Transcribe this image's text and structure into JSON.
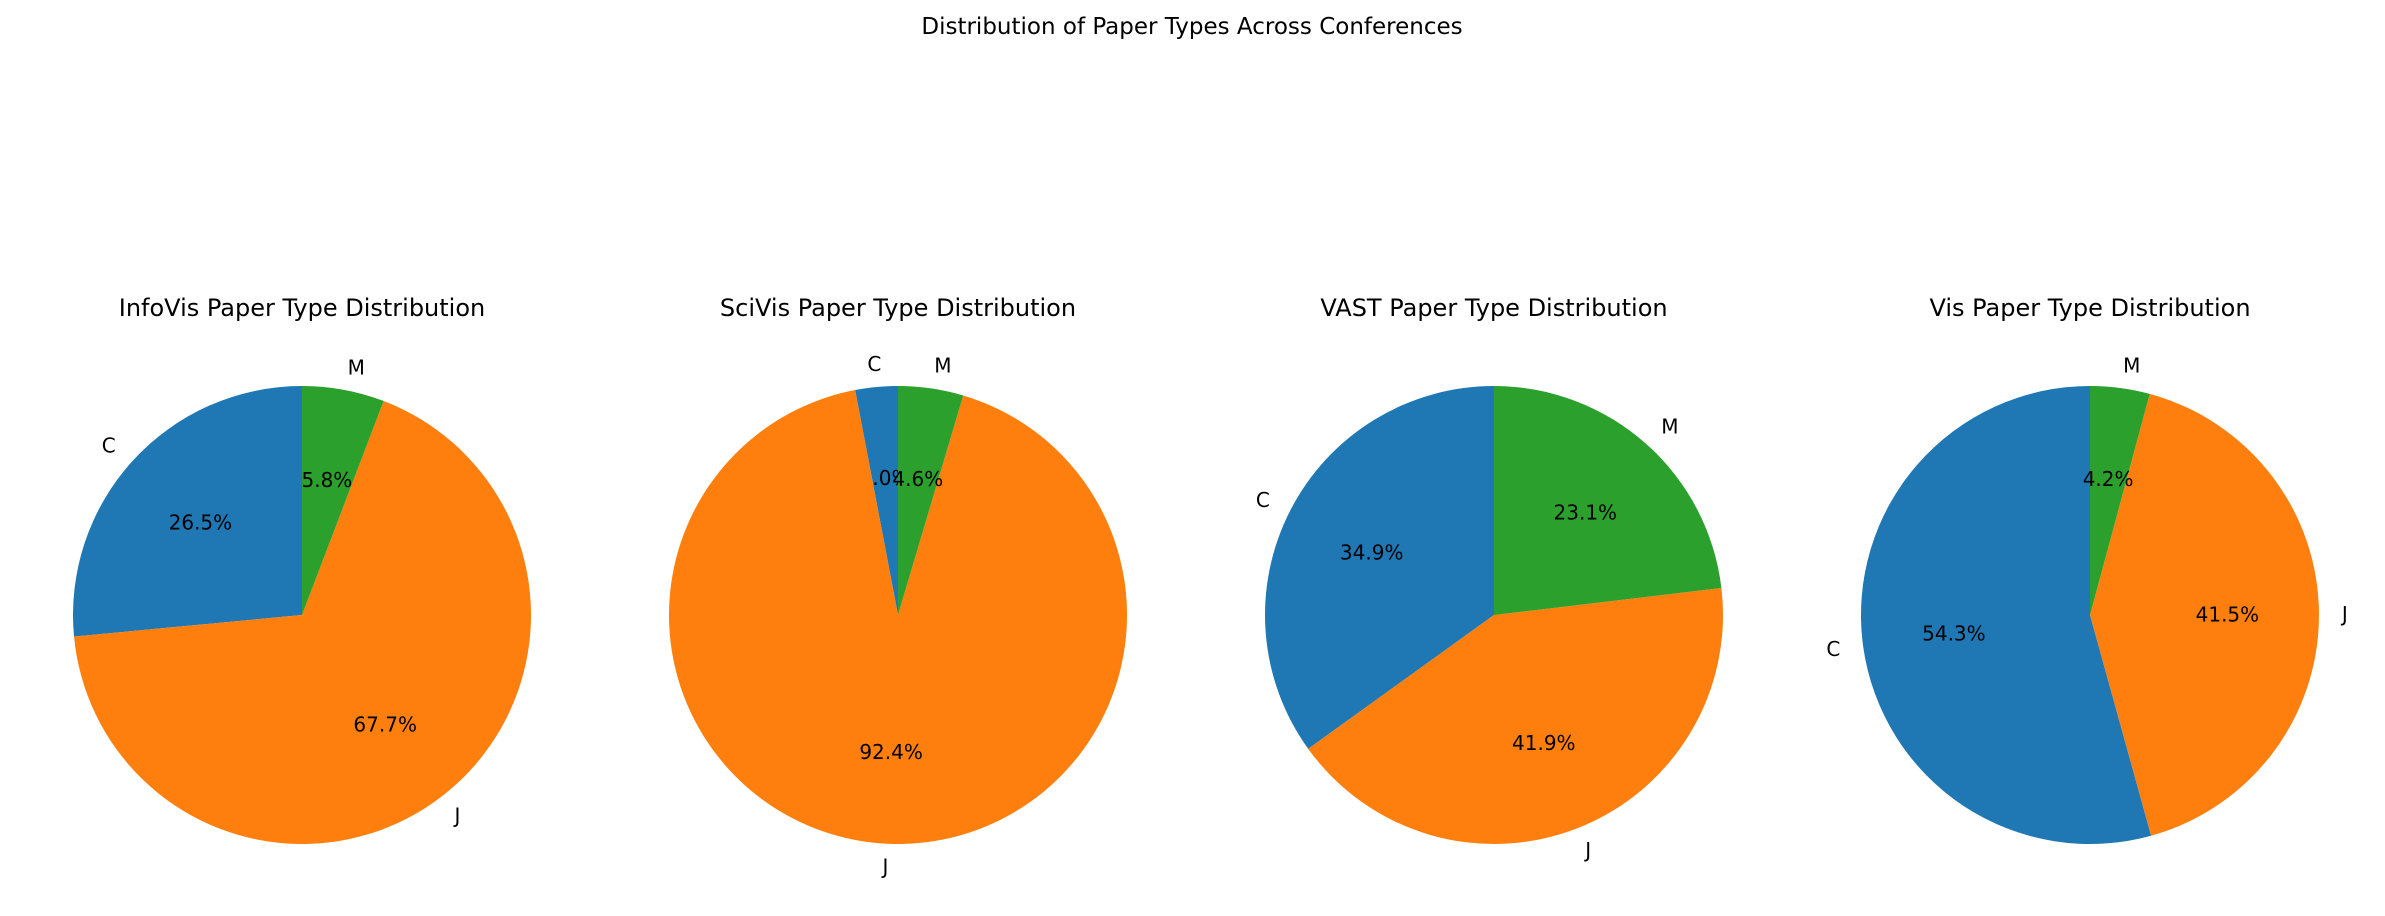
{
  "figure": {
    "title": "Distribution of Paper Types Across Conferences"
  },
  "colors": {
    "C": "#1f77b4",
    "J": "#ff7f0e",
    "M": "#2ca02c"
  },
  "chart_data": [
    {
      "type": "pie",
      "title": "InfoVis Paper Type Distribution",
      "labels": [
        "C",
        "J",
        "M"
      ],
      "values": [
        26.5,
        67.7,
        5.8
      ],
      "start_angle_deg": 90,
      "direction": "counterclockwise"
    },
    {
      "type": "pie",
      "title": "SciVis Paper Type Distribution",
      "labels": [
        "C",
        "J",
        "M"
      ],
      "values": [
        3.0,
        92.5,
        4.6
      ],
      "start_angle_deg": 90,
      "direction": "counterclockwise"
    },
    {
      "type": "pie",
      "title": "VAST Paper Type Distribution",
      "labels": [
        "C",
        "J",
        "M"
      ],
      "values": [
        34.9,
        41.9,
        23.1
      ],
      "start_angle_deg": 90,
      "direction": "counterclockwise"
    },
    {
      "type": "pie",
      "title": "Vis Paper Type Distribution",
      "labels": [
        "C",
        "J",
        "M"
      ],
      "values": [
        54.3,
        41.5,
        4.2
      ],
      "start_angle_deg": 90,
      "direction": "counterclockwise"
    }
  ]
}
